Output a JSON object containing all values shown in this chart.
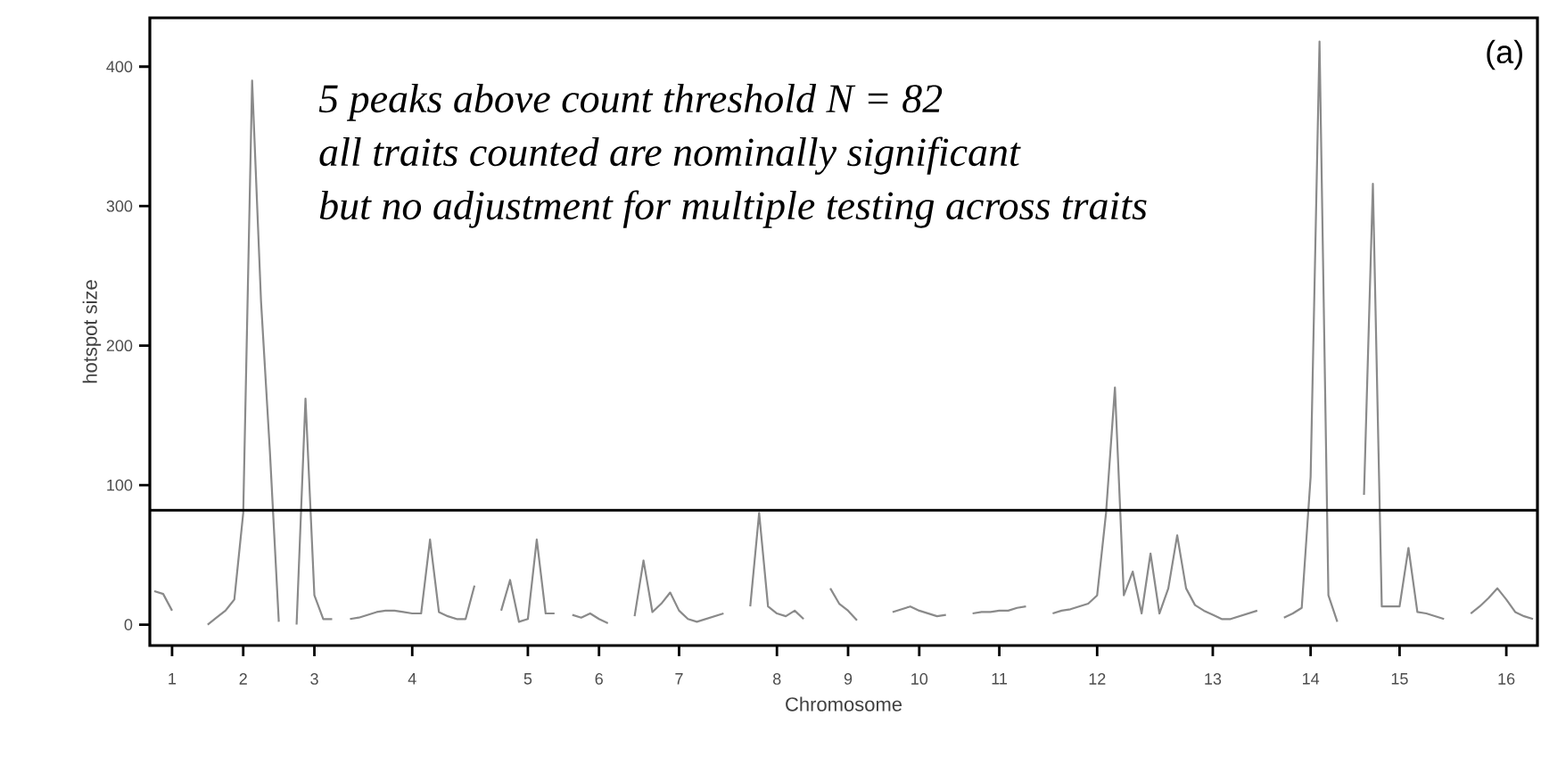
{
  "chart_data": {
    "type": "line",
    "xlabel": "Chromosome",
    "ylabel": "hotspot size",
    "annotations": [
      "5 peaks above count threshold N = 82",
      "all traits counted are nominally significant",
      "but no adjustment for multiple testing across traits",
      "(a)"
    ],
    "categories": [
      null,
      null,
      "1",
      null,
      null,
      null,
      null,
      null,
      null,
      null,
      "2",
      null,
      null,
      null,
      null,
      null,
      null,
      null,
      "3",
      null,
      null,
      null,
      null,
      null,
      null,
      null,
      null,
      null,
      null,
      "4",
      null,
      null,
      null,
      null,
      null,
      null,
      null,
      null,
      null,
      null,
      null,
      null,
      "5",
      null,
      null,
      null,
      null,
      null,
      null,
      null,
      "6",
      null,
      null,
      null,
      null,
      null,
      null,
      null,
      null,
      "7",
      null,
      null,
      null,
      null,
      null,
      null,
      null,
      null,
      null,
      null,
      "8",
      null,
      null,
      null,
      null,
      null,
      null,
      null,
      "9",
      null,
      null,
      null,
      null,
      null,
      null,
      null,
      "10",
      null,
      null,
      null,
      null,
      null,
      null,
      null,
      null,
      "11",
      null,
      null,
      null,
      null,
      null,
      null,
      null,
      null,
      null,
      null,
      "12",
      null,
      null,
      null,
      null,
      null,
      null,
      null,
      null,
      null,
      null,
      null,
      null,
      "13",
      null,
      null,
      null,
      null,
      null,
      null,
      null,
      null,
      null,
      null,
      "14",
      null,
      null,
      null,
      null,
      null,
      null,
      null,
      null,
      null,
      "15",
      null,
      null,
      null,
      null,
      null,
      null,
      null,
      null,
      null,
      null,
      null,
      "16",
      null,
      null,
      null
    ],
    "ylim": [
      -15,
      435
    ],
    "yticks": [
      0,
      100,
      200,
      300,
      400
    ],
    "ref_lines": [
      {
        "axis": "y",
        "value": 82,
        "color": "#000000"
      }
    ],
    "grid": false,
    "marker": "none",
    "line_style": "solid",
    "series": [
      {
        "color": "#8a8a8a",
        "values": [
          24,
          22,
          10,
          null,
          null,
          null,
          0,
          5,
          10,
          18,
          80,
          390,
          232,
          124,
          2,
          null,
          0,
          162,
          21,
          4,
          4,
          null,
          4,
          5,
          7,
          9,
          10,
          10,
          9,
          8,
          8,
          61,
          9,
          6,
          4,
          4,
          28,
          null,
          null,
          10,
          32,
          2,
          4,
          61,
          8,
          8,
          null,
          7,
          5,
          8,
          4,
          1,
          null,
          null,
          6,
          46,
          9,
          15,
          23,
          10,
          4,
          2,
          4,
          6,
          8,
          null,
          null,
          13,
          80,
          13,
          8,
          6,
          10,
          4,
          null,
          null,
          26,
          15,
          10,
          3,
          null,
          null,
          null,
          9,
          11,
          13,
          10,
          8,
          6,
          7,
          null,
          null,
          8,
          9,
          9,
          10,
          10,
          12,
          13,
          null,
          null,
          8,
          10,
          11,
          13,
          15,
          21,
          80,
          170,
          21,
          38,
          8,
          51,
          8,
          26,
          64,
          26,
          14,
          10,
          7,
          4,
          4,
          6,
          8,
          10,
          null,
          null,
          5,
          8,
          12,
          106,
          418,
          21,
          2,
          null,
          null,
          93,
          316,
          13,
          13,
          13,
          55,
          9,
          8,
          6,
          4,
          null,
          null,
          8,
          13,
          19,
          26,
          18,
          9,
          6,
          4
        ]
      }
    ]
  }
}
